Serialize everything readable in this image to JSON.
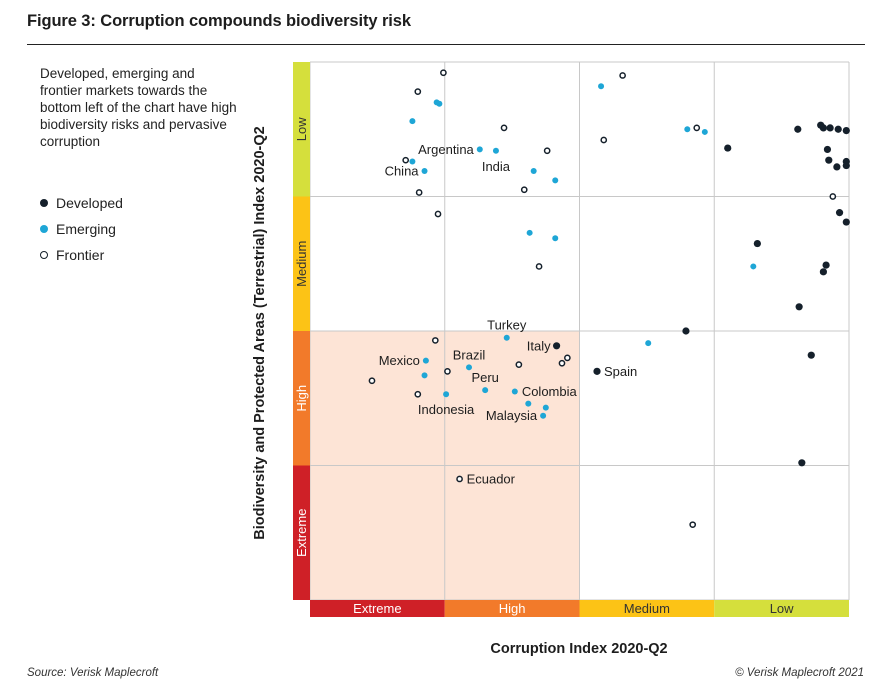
{
  "header": {
    "title": "Figure 3: Corruption compounds biodiversity risk"
  },
  "description": "Developed, emerging and frontier markets towards the bottom left of the chart have high biodiversity risks and pervasive corruption",
  "legend": [
    {
      "key": "developed",
      "label": "Developed"
    },
    {
      "key": "emerging",
      "label": "Emerging"
    },
    {
      "key": "frontier",
      "label": "Frontier"
    }
  ],
  "footer": {
    "source": "Source: Verisk Maplecroft",
    "copyright": "© Verisk Maplecroft 2021"
  },
  "colors": {
    "developed": "#15202b",
    "emerging": "#1ea6d6",
    "frontier_stroke": "#15202b",
    "extreme": "#cf2027",
    "high": "#f27a2a",
    "medium": "#fcc316",
    "low": "#d5df3c",
    "highlight_zone": "#fde4d6",
    "grid": "#c8c8c8"
  },
  "chart_data": {
    "type": "scatter",
    "title": "Figure 3: Corruption compounds biodiversity risk",
    "xlabel": "Corruption Index 2020-Q2",
    "ylabel": "Biodiversity and Protected Areas (Terrestrial) Index 2020-Q2",
    "xlim": [
      0,
      4
    ],
    "ylim": [
      0,
      4
    ],
    "grid": true,
    "legend_position": "left",
    "x_bands": [
      {
        "label": "Extreme",
        "range": [
          0,
          1
        ],
        "color_key": "extreme",
        "text_color": "#ffffff"
      },
      {
        "label": "High",
        "range": [
          1,
          2
        ],
        "color_key": "high",
        "text_color": "#ffffff"
      },
      {
        "label": "Medium",
        "range": [
          2,
          3
        ],
        "color_key": "medium",
        "text_color": "#333333"
      },
      {
        "label": "Low",
        "range": [
          3,
          4
        ],
        "color_key": "low",
        "text_color": "#333333"
      }
    ],
    "y_bands": [
      {
        "label": "Extreme",
        "range": [
          0,
          1
        ],
        "color_key": "extreme",
        "text_color": "#ffffff"
      },
      {
        "label": "High",
        "range": [
          1,
          2
        ],
        "color_key": "high",
        "text_color": "#ffffff"
      },
      {
        "label": "Medium",
        "range": [
          2,
          3
        ],
        "color_key": "medium",
        "text_color": "#333333"
      },
      {
        "label": "Low",
        "range": [
          3,
          4
        ],
        "color_key": "low",
        "text_color": "#333333"
      }
    ],
    "highlight_zone": {
      "x": [
        0,
        2
      ],
      "y": [
        0,
        2
      ]
    },
    "series": [
      {
        "name": "Developed",
        "key": "developed",
        "points": [
          {
            "x": 1.83,
            "y": 1.89,
            "label": "Italy",
            "label_pos": "left"
          },
          {
            "x": 2.13,
            "y": 1.7,
            "label": "Spain",
            "label_pos": "right"
          },
          {
            "x": 2.79,
            "y": 2.0
          },
          {
            "x": 3.1,
            "y": 3.36
          },
          {
            "x": 3.32,
            "y": 2.65
          },
          {
            "x": 3.62,
            "y": 3.5
          },
          {
            "x": 3.79,
            "y": 3.53
          },
          {
            "x": 3.81,
            "y": 3.51
          },
          {
            "x": 3.86,
            "y": 3.51
          },
          {
            "x": 3.92,
            "y": 3.5
          },
          {
            "x": 3.98,
            "y": 3.49
          },
          {
            "x": 3.84,
            "y": 3.35
          },
          {
            "x": 3.85,
            "y": 3.27
          },
          {
            "x": 3.91,
            "y": 3.22
          },
          {
            "x": 3.98,
            "y": 3.26
          },
          {
            "x": 3.98,
            "y": 3.23
          },
          {
            "x": 3.93,
            "y": 2.88
          },
          {
            "x": 3.98,
            "y": 2.81
          },
          {
            "x": 3.83,
            "y": 2.49
          },
          {
            "x": 3.81,
            "y": 2.44
          },
          {
            "x": 3.63,
            "y": 2.18
          },
          {
            "x": 3.72,
            "y": 1.82
          },
          {
            "x": 3.65,
            "y": 1.02
          }
        ]
      },
      {
        "name": "Emerging",
        "key": "emerging",
        "points": [
          {
            "x": 0.94,
            "y": 3.7
          },
          {
            "x": 0.96,
            "y": 3.69
          },
          {
            "x": 0.76,
            "y": 3.56
          },
          {
            "x": 1.26,
            "y": 3.35,
            "label": "Argentina",
            "label_pos": "left"
          },
          {
            "x": 1.38,
            "y": 3.34,
            "label": "India",
            "label_pos": "below"
          },
          {
            "x": 0.76,
            "y": 3.26
          },
          {
            "x": 0.85,
            "y": 3.19,
            "label": "China",
            "label_pos": "left"
          },
          {
            "x": 1.66,
            "y": 3.19
          },
          {
            "x": 1.82,
            "y": 3.12
          },
          {
            "x": 2.16,
            "y": 3.82
          },
          {
            "x": 2.8,
            "y": 3.5
          },
          {
            "x": 2.93,
            "y": 3.48
          },
          {
            "x": 1.63,
            "y": 2.73
          },
          {
            "x": 1.82,
            "y": 2.69
          },
          {
            "x": 3.29,
            "y": 2.48
          },
          {
            "x": 2.51,
            "y": 1.91
          },
          {
            "x": 1.46,
            "y": 1.95,
            "label": "Turkey",
            "label_pos": "above"
          },
          {
            "x": 0.86,
            "y": 1.78,
            "label": "Mexico",
            "label_pos": "left"
          },
          {
            "x": 0.85,
            "y": 1.67
          },
          {
            "x": 1.18,
            "y": 1.73,
            "label": "Brazil",
            "label_pos": "above"
          },
          {
            "x": 1.3,
            "y": 1.56,
            "label": "Peru",
            "label_pos": "above"
          },
          {
            "x": 1.52,
            "y": 1.55,
            "label": "Colombia",
            "label_pos": "right"
          },
          {
            "x": 1.01,
            "y": 1.53,
            "label": "Indonesia",
            "label_pos": "below"
          },
          {
            "x": 1.62,
            "y": 1.46
          },
          {
            "x": 1.75,
            "y": 1.43
          },
          {
            "x": 1.73,
            "y": 1.37,
            "label": "Malaysia",
            "label_pos": "left"
          }
        ]
      },
      {
        "name": "Frontier",
        "key": "frontier",
        "points": [
          {
            "x": 0.99,
            "y": 3.92
          },
          {
            "x": 0.8,
            "y": 3.78
          },
          {
            "x": 1.44,
            "y": 3.51
          },
          {
            "x": 1.76,
            "y": 3.34
          },
          {
            "x": 0.71,
            "y": 3.27
          },
          {
            "x": 1.59,
            "y": 3.05
          },
          {
            "x": 0.81,
            "y": 3.03
          },
          {
            "x": 0.95,
            "y": 2.87
          },
          {
            "x": 1.7,
            "y": 2.48
          },
          {
            "x": 2.32,
            "y": 3.9
          },
          {
            "x": 2.18,
            "y": 3.42
          },
          {
            "x": 2.87,
            "y": 3.51
          },
          {
            "x": 3.88,
            "y": 3.0
          },
          {
            "x": 0.93,
            "y": 1.93
          },
          {
            "x": 0.46,
            "y": 1.63
          },
          {
            "x": 1.02,
            "y": 1.7
          },
          {
            "x": 1.55,
            "y": 1.75
          },
          {
            "x": 0.8,
            "y": 1.53
          },
          {
            "x": 1.87,
            "y": 1.76
          },
          {
            "x": 1.91,
            "y": 1.8
          },
          {
            "x": 1.11,
            "y": 0.9,
            "label": "Ecuador",
            "label_pos": "right"
          },
          {
            "x": 2.84,
            "y": 0.56
          }
        ]
      }
    ]
  }
}
